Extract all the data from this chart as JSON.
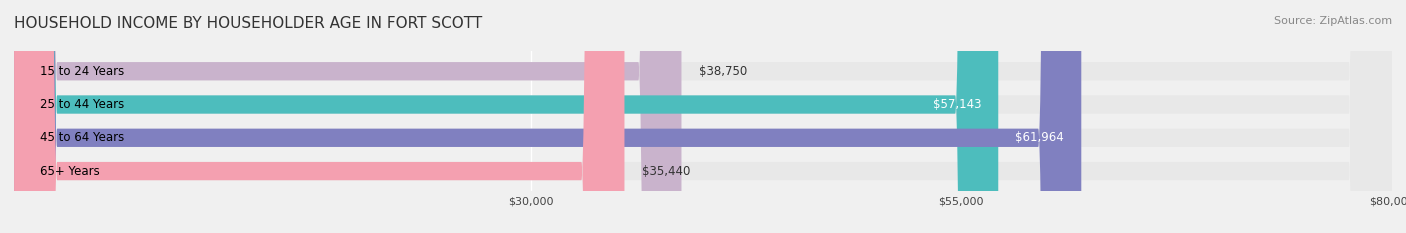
{
  "title": "HOUSEHOLD INCOME BY HOUSEHOLDER AGE IN FORT SCOTT",
  "source": "Source: ZipAtlas.com",
  "categories": [
    "15 to 24 Years",
    "25 to 44 Years",
    "45 to 64 Years",
    "65+ Years"
  ],
  "values": [
    38750,
    57143,
    61964,
    35440
  ],
  "bar_colors": [
    "#c9b3cc",
    "#4dbdbd",
    "#8080c0",
    "#f4a0b0"
  ],
  "label_colors": [
    "#555555",
    "#ffffff",
    "#ffffff",
    "#555555"
  ],
  "bar_labels": [
    "$38,750",
    "$57,143",
    "$61,964",
    "$35,440"
  ],
  "xlim": [
    0,
    80000
  ],
  "xticks": [
    30000,
    55000,
    80000
  ],
  "xtick_labels": [
    "$30,000",
    "$55,000",
    "$80,000"
  ],
  "background_color": "#f0f0f0",
  "bar_background_color": "#e8e8e8",
  "title_fontsize": 11,
  "source_fontsize": 8,
  "label_fontsize": 8.5,
  "tick_fontsize": 8,
  "category_fontsize": 8.5,
  "bar_height": 0.55
}
